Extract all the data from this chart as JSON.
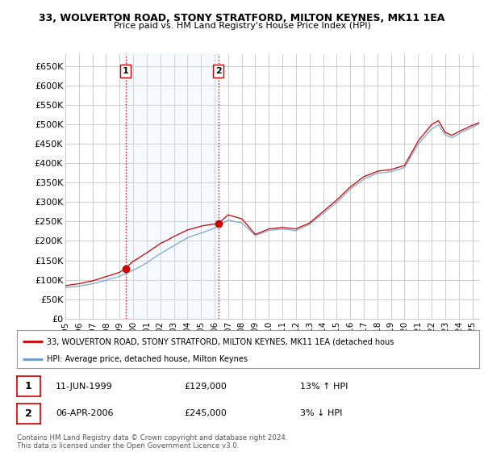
{
  "title": "33, WOLVERTON ROAD, STONY STRATFORD, MILTON KEYNES, MK11 1EA",
  "subtitle": "Price paid vs. HM Land Registry's House Price Index (HPI)",
  "ylabel_ticks": [
    "£0",
    "£50K",
    "£100K",
    "£150K",
    "£200K",
    "£250K",
    "£300K",
    "£350K",
    "£400K",
    "£450K",
    "£500K",
    "£550K",
    "£600K",
    "£650K"
  ],
  "ytick_values": [
    0,
    50000,
    100000,
    150000,
    200000,
    250000,
    300000,
    350000,
    400000,
    450000,
    500000,
    550000,
    600000,
    650000
  ],
  "ylim": [
    0,
    680000
  ],
  "legend_line1": "33, WOLVERTON ROAD, STONY STRATFORD, MILTON KEYNES, MK11 1EA (detached hous",
  "legend_line2": "HPI: Average price, detached house, Milton Keynes",
  "sale1_label": "1",
  "sale1_date": "11-JUN-1999",
  "sale1_price": "£129,000",
  "sale1_hpi": "13% ↑ HPI",
  "sale2_label": "2",
  "sale2_date": "06-APR-2006",
  "sale2_price": "£245,000",
  "sale2_hpi": "3% ↓ HPI",
  "copyright_text": "Contains HM Land Registry data © Crown copyright and database right 2024.\nThis data is licensed under the Open Government Licence v3.0.",
  "line_color_red": "#cc0000",
  "line_color_blue": "#6699cc",
  "shade_color": "#ddeeff",
  "vline_color": "#cc0000",
  "background_color": "#ffffff",
  "grid_color": "#cccccc",
  "sale1_x_year": 1999.44,
  "sale2_x_year": 2006.27,
  "sale1_dot_price": 129000,
  "sale2_dot_price": 245000,
  "xmin": 1995,
  "xmax": 2025.5
}
